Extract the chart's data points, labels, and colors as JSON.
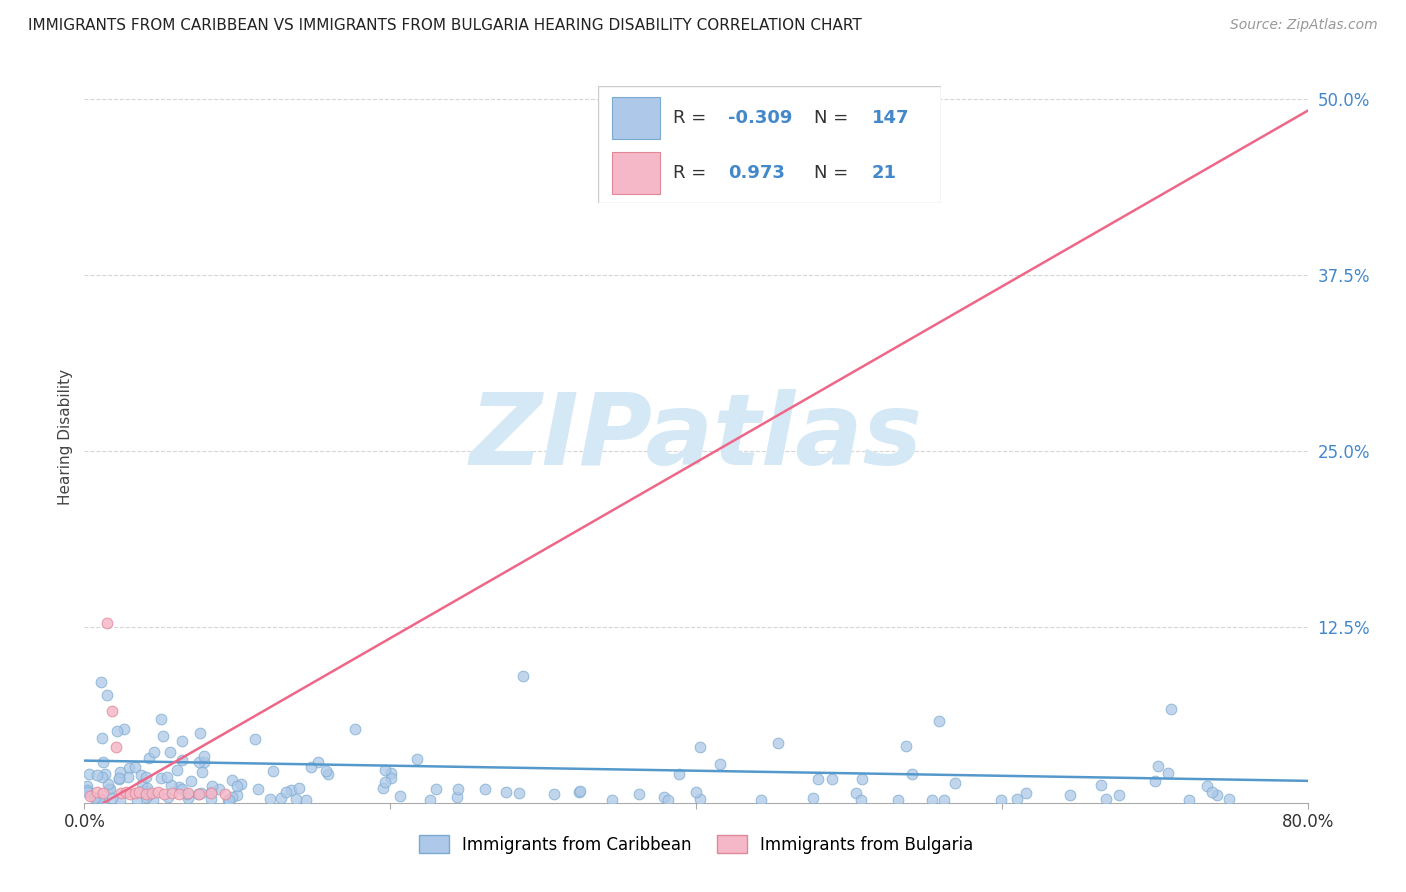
{
  "title": "IMMIGRANTS FROM CARIBBEAN VS IMMIGRANTS FROM BULGARIA HEARING DISABILITY CORRELATION CHART",
  "source": "Source: ZipAtlas.com",
  "ylabel": "Hearing Disability",
  "xlim": [
    0.0,
    0.8
  ],
  "ylim": [
    0.0,
    0.52
  ],
  "caribbean_R": -0.309,
  "caribbean_N": 147,
  "bulgaria_R": 0.973,
  "bulgaria_N": 21,
  "caribbean_color": "#adc8e8",
  "caribbean_edge_color": "#7aaad0",
  "bulgaria_color": "#f5b8c8",
  "bulgaria_edge_color": "#e08898",
  "caribbean_line_color": "#5599cc",
  "bulgaria_line_color": "#ee6688",
  "watermark_text": "ZIPatlas",
  "watermark_color": "#d5e8f5",
  "legend_label_caribbean": "Immigrants from Caribbean",
  "legend_label_bulgaria": "Immigrants from Bulgaria",
  "carib_line_slope": -0.018,
  "carib_line_intercept": 0.03,
  "bulg_line_slope": 0.625,
  "bulg_line_intercept": -0.008,
  "title_fontsize": 11,
  "source_fontsize": 10,
  "tick_fontsize": 12,
  "ylabel_fontsize": 11,
  "scatter_size": 60,
  "legend_fontsize": 13
}
